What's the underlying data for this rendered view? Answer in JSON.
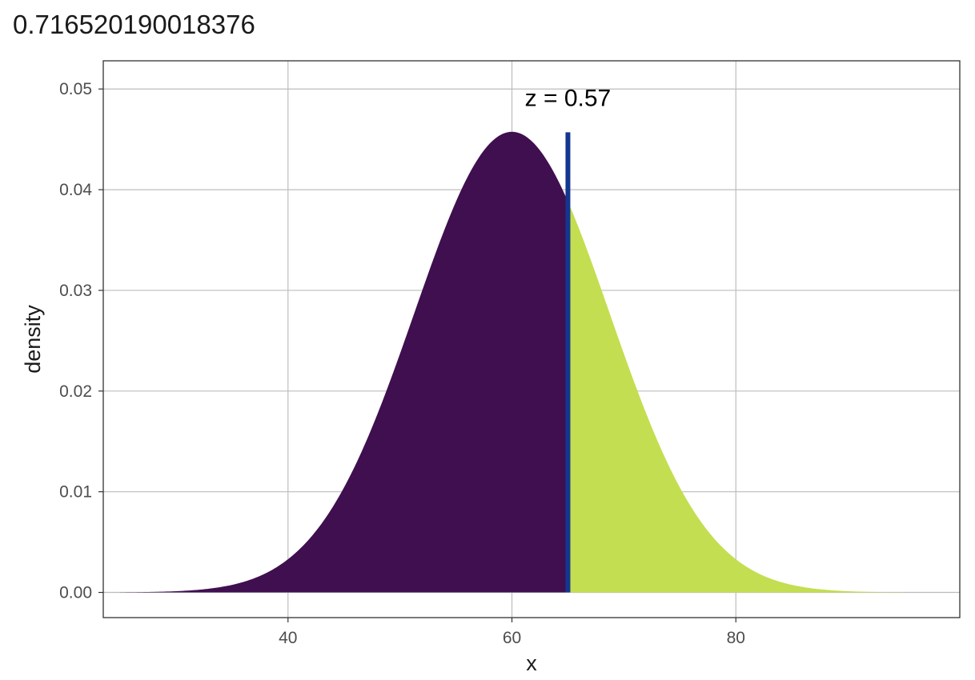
{
  "chart_data": {
    "type": "area",
    "title": "0.716520190018376",
    "xlabel": "x",
    "ylabel": "density",
    "distribution": {
      "family": "normal",
      "mean": 60,
      "sd": 8.72
    },
    "x_range": [
      25,
      95
    ],
    "xlim": [
      23.5,
      100
    ],
    "ylim": [
      -0.0025,
      0.0528
    ],
    "x_ticks": [
      40,
      60,
      80
    ],
    "x_tick_labels": [
      "40",
      "60",
      "80"
    ],
    "y_ticks": [
      0,
      0.01,
      0.02,
      0.03,
      0.04,
      0.05
    ],
    "y_tick_labels": [
      "0.00",
      "0.01",
      "0.02",
      "0.03",
      "0.04",
      "0.05"
    ],
    "cutoff_x": 65,
    "peak_density": 0.0457,
    "annotation": "z =  0.57",
    "grid": true,
    "regions": [
      {
        "side": "below cutoff",
        "color": "#3f0f4f"
      },
      {
        "side": "above cutoff",
        "color": "#c3de50"
      }
    ],
    "cutoff_line_color": "#14368f"
  }
}
